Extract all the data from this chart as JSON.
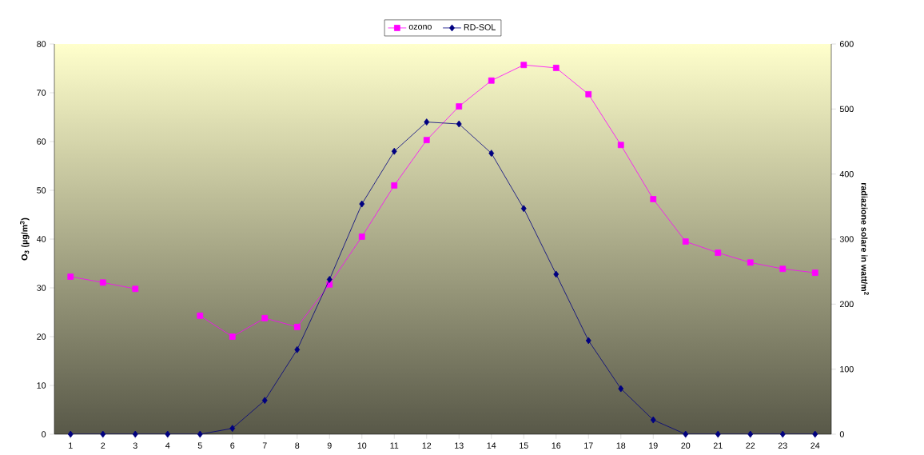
{
  "chart_data": {
    "type": "line",
    "categories": [
      "1",
      "2",
      "3",
      "4",
      "5",
      "6",
      "7",
      "8",
      "9",
      "10",
      "11",
      "12",
      "13",
      "14",
      "15",
      "16",
      "17",
      "18",
      "19",
      "20",
      "21",
      "22",
      "23",
      "24"
    ],
    "series": [
      {
        "name": "ozono",
        "color": "#ff00ff",
        "marker": "square",
        "values": [
          32.3,
          31.1,
          29.8,
          null,
          24.3,
          20.0,
          23.8,
          22.0,
          30.7,
          40.5,
          51.0,
          60.3,
          67.2,
          72.5,
          75.7,
          75.1,
          69.7,
          59.3,
          48.2,
          39.5,
          37.2,
          35.2,
          33.9,
          33.1
        ]
      },
      {
        "name": "RD-SOL",
        "color": "#000080",
        "marker": "diamond",
        "axis": "y2",
        "values": [
          0,
          0,
          0,
          0,
          0,
          9,
          52,
          130,
          238,
          354,
          435,
          480,
          477,
          432,
          347,
          246,
          144,
          70,
          22,
          0,
          0,
          0,
          0,
          0
        ]
      }
    ],
    "ylabel": "O$_{3}$ (µg/m$^{3}$)",
    "y2label": "radiazione solare in watt/m$^{2}$",
    "ylim": [
      0,
      80
    ],
    "yticks": [
      0,
      10,
      20,
      30,
      40,
      50,
      60,
      70,
      80
    ],
    "y2lim": [
      0,
      600
    ],
    "y2ticks": [
      0,
      100,
      200,
      300,
      400,
      500,
      600
    ],
    "legend": "top",
    "grid": false,
    "line_style": "solid"
  }
}
